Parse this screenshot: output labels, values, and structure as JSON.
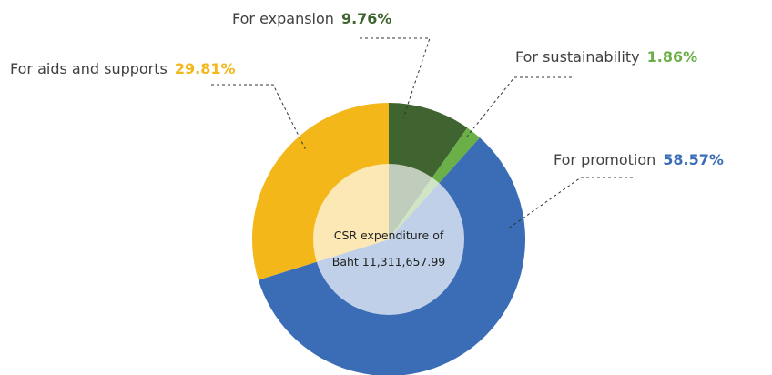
{
  "chart_data": {
    "type": "pie",
    "categories": [
      "For expansion",
      "For sustainability",
      "For promotion",
      "For aids and supports"
    ],
    "values": [
      9.76,
      1.86,
      58.57,
      29.81
    ],
    "value_labels": [
      "9.76%",
      "1.86%",
      "58.57%",
      "29.81%"
    ],
    "colors": [
      "#3f6430",
      "#6aaf48",
      "#3a6db6",
      "#f3b71a"
    ],
    "center_label": [
      "CSR expenditure of",
      "Baht 11,311,657.99"
    ]
  }
}
